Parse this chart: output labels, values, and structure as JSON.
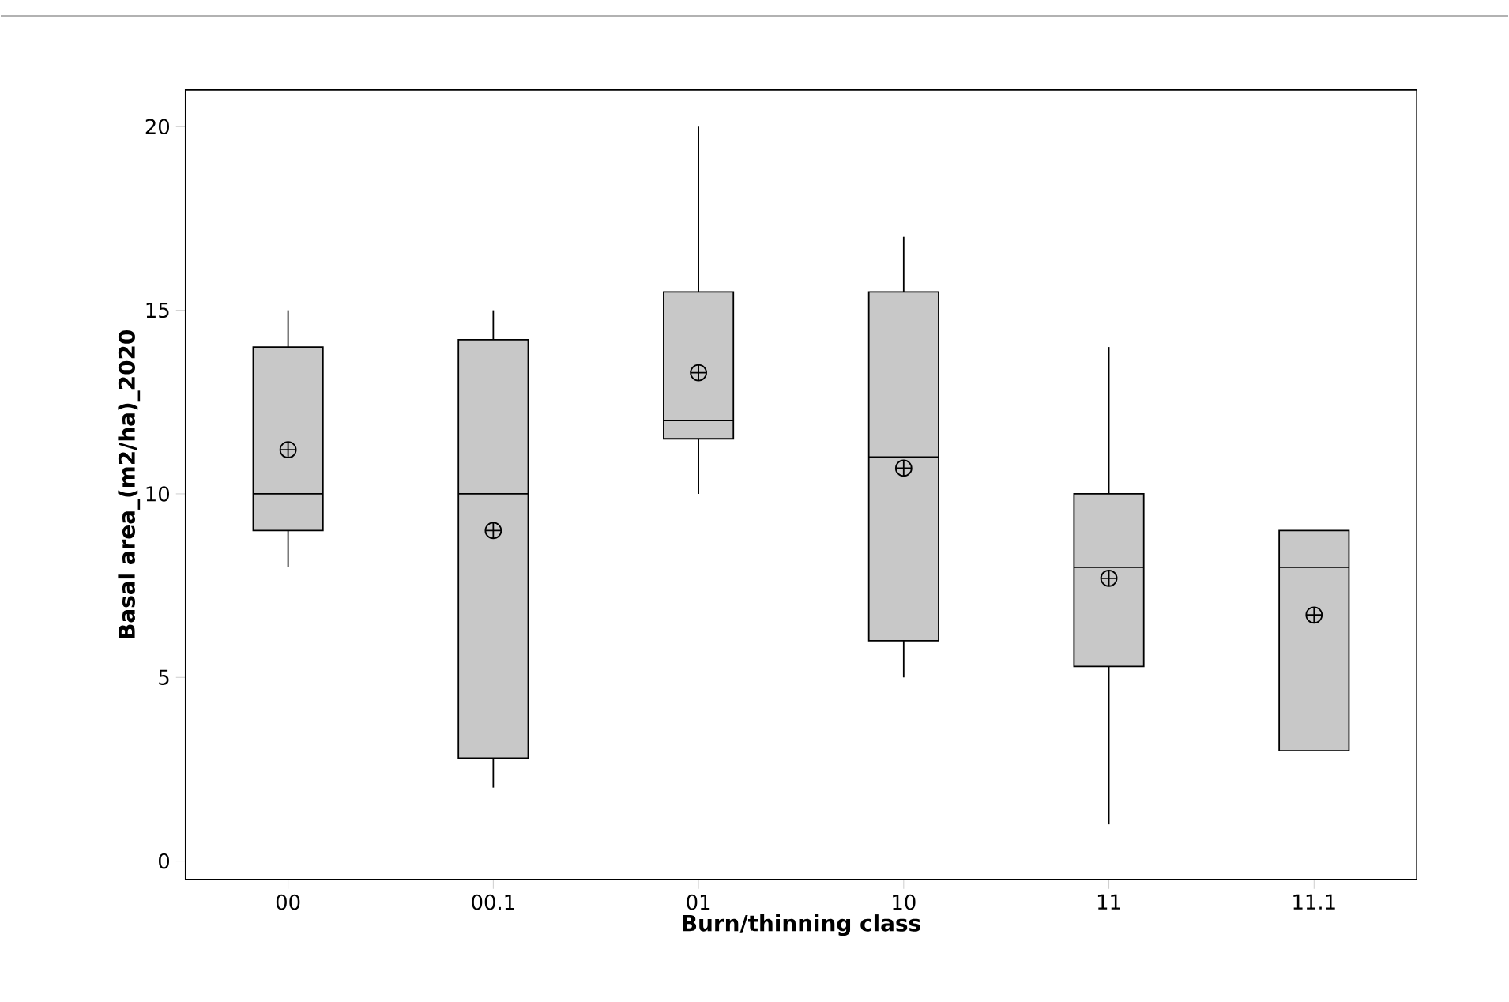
{
  "chart_data": {
    "type": "box",
    "xlabel": "Burn/thinning class",
    "ylabel": "Basal area_(m2/ha)_2020",
    "categories": [
      "00",
      "00.1",
      "01",
      "10",
      "11",
      "11.1"
    ],
    "boxes": [
      {
        "low": 8,
        "q1": 9,
        "median": 10,
        "q3": 14,
        "high": 15,
        "mean": 11.2
      },
      {
        "low": 2,
        "q1": 2.8,
        "median": 10,
        "q3": 14.2,
        "high": 15,
        "mean": 9
      },
      {
        "low": 10,
        "q1": 11.5,
        "median": 12,
        "q3": 15.5,
        "high": 20,
        "mean": 13.3
      },
      {
        "low": 5,
        "q1": 6,
        "median": 11,
        "q3": 15.5,
        "high": 17,
        "mean": 10.7
      },
      {
        "low": 1,
        "q1": 5.3,
        "median": 8,
        "q3": 10,
        "high": 14,
        "mean": 7.7
      },
      {
        "low": 3,
        "q1": 3,
        "median": 8,
        "q3": 9,
        "high": 9,
        "mean": 6.7
      }
    ],
    "color": "#c8c8c8",
    "ylim": [
      -0.5,
      21
    ],
    "yticks": [
      0,
      5,
      10,
      15,
      20
    ],
    "grid": false
  }
}
